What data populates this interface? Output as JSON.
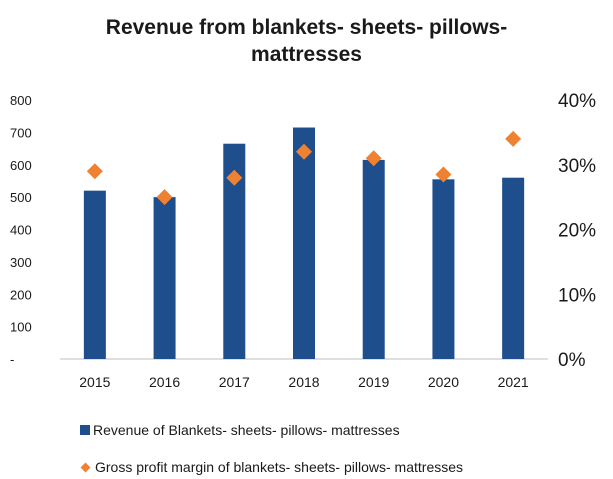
{
  "chart_data": {
    "type": "bar",
    "title_lines": [
      "Revenue from blankets- sheets- pillows-",
      "mattresses"
    ],
    "categories": [
      "2015",
      "2016",
      "2017",
      "2018",
      "2019",
      "2020",
      "2021"
    ],
    "series": [
      {
        "name": "Revenue of Blankets- sheets- pillows- mattresses",
        "type": "bar",
        "axis": "left",
        "color": "#1f4e8c",
        "values": [
          520,
          500,
          665,
          715,
          615,
          555,
          560
        ]
      },
      {
        "name": "Gross profit margin of blankets- sheets- pillows- mattresses",
        "type": "scatter",
        "axis": "right",
        "color": "#ee8232",
        "values": [
          0.29,
          0.25,
          0.28,
          0.32,
          0.31,
          0.285,
          0.34
        ]
      }
    ],
    "y_left": {
      "ylim": [
        0,
        800
      ],
      "ticks": [
        0,
        100,
        200,
        300,
        400,
        500,
        600,
        700,
        800
      ],
      "tick_labels": [
        "-",
        "100",
        "200",
        "300",
        "400",
        "500",
        "600",
        "700",
        "800"
      ]
    },
    "y_right": {
      "ylim": [
        0,
        0.4
      ],
      "ticks": [
        0,
        0.1,
        0.2,
        0.3,
        0.4
      ],
      "tick_labels": [
        "0%",
        "10%",
        "20%",
        "30%",
        "40%"
      ]
    },
    "xlabel": "",
    "ylabel": "",
    "grid": false,
    "legend_position": "bottom"
  }
}
